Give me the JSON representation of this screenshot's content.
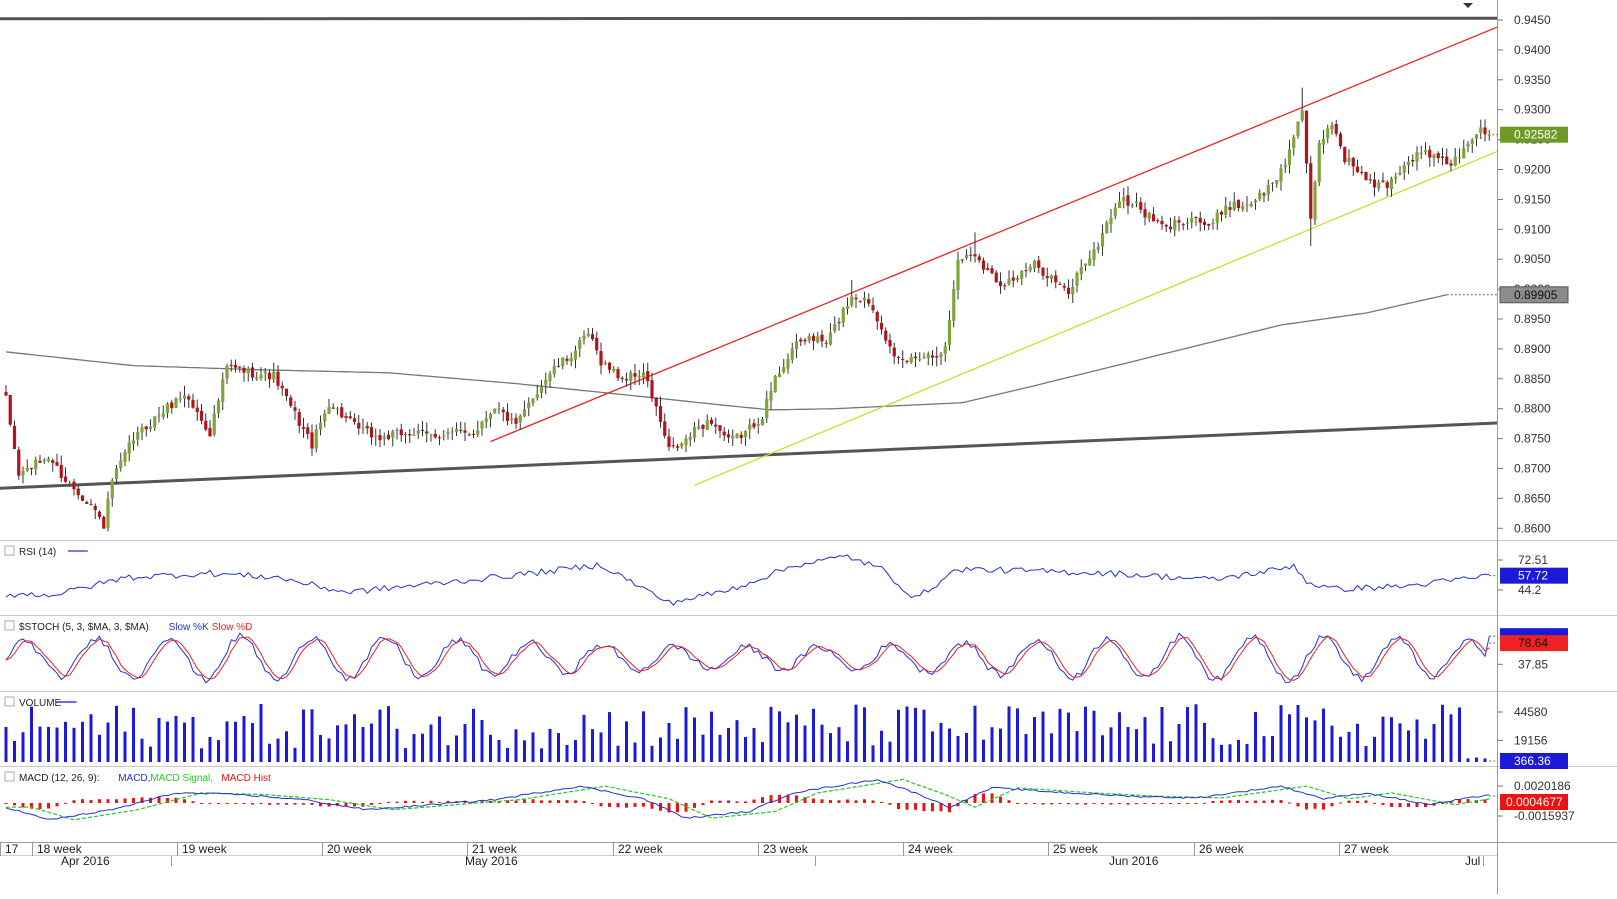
{
  "chart_data": {
    "type": "candlestick",
    "instrument_period": "4H",
    "colors": {
      "up_body": "#7ea53a",
      "down_body": "#b3131b",
      "wick": "#333333",
      "resistance_channel": "#ee2222",
      "support_channel": "#c8e02a",
      "long_trendline": "#555555",
      "sma": "#777777",
      "rsi": "#2233cc",
      "stoch_k": "#2233dd",
      "stoch_d": "#ee2222",
      "volume": "#1a1ad8",
      "macd": "#2233cc",
      "macd_signal": "#22cc22",
      "macd_hist": "#ee1111",
      "last_price_label": "#6e9a25",
      "sma_label": "#8c8c8c",
      "indicator_label": "#1a1ad8",
      "macd_label": "#ee1111"
    },
    "price_axis": {
      "ylim": [
        0.8575,
        0.9475
      ],
      "ticks": [
        "0.9450",
        "0.9400",
        "0.9350",
        "0.9300",
        "0.9250",
        "0.9200",
        "0.9150",
        "0.9100",
        "0.9050",
        "0.9000",
        "0.8950",
        "0.8900",
        "0.8850",
        "0.8800",
        "0.8750",
        "0.8700",
        "0.8650",
        "0.8600"
      ],
      "last_price": "0.92582",
      "sma_value": "0.89905"
    },
    "x_axis": {
      "week_labels": [
        "17",
        "18 week",
        "19 week",
        "20 week",
        "21 week",
        "22 week",
        "23 week",
        "24 week",
        "25 week",
        "26 week",
        "27 week"
      ],
      "month_labels": [
        "Apr 2016",
        "May 2016",
        "Jun 2016",
        "Jul"
      ]
    },
    "price_keypoints": [
      [
        0,
        0.8815
      ],
      [
        3,
        0.869
      ],
      [
        10,
        0.872
      ],
      [
        14,
        0.868
      ],
      [
        20,
        0.864
      ],
      [
        23,
        0.8605
      ],
      [
        25,
        0.868
      ],
      [
        30,
        0.875
      ],
      [
        36,
        0.879
      ],
      [
        42,
        0.8825
      ],
      [
        48,
        0.876
      ],
      [
        52,
        0.887
      ],
      [
        58,
        0.886
      ],
      [
        63,
        0.8855
      ],
      [
        68,
        0.879
      ],
      [
        72,
        0.874
      ],
      [
        76,
        0.881
      ],
      [
        82,
        0.877
      ],
      [
        88,
        0.875
      ],
      [
        94,
        0.876
      ],
      [
        100,
        0.8755
      ],
      [
        106,
        0.876
      ],
      [
        110,
        0.876
      ],
      [
        115,
        0.8805
      ],
      [
        120,
        0.877
      ],
      [
        124,
        0.882
      ],
      [
        128,
        0.886
      ],
      [
        133,
        0.889
      ],
      [
        137,
        0.8925
      ],
      [
        140,
        0.888
      ],
      [
        145,
        0.885
      ],
      [
        150,
        0.886
      ],
      [
        153,
        0.88
      ],
      [
        156,
        0.873
      ],
      [
        159,
        0.874
      ],
      [
        163,
        0.877
      ],
      [
        166,
        0.878
      ],
      [
        170,
        0.8745
      ],
      [
        174,
        0.876
      ],
      [
        178,
        0.879
      ],
      [
        181,
        0.885
      ],
      [
        185,
        0.89
      ],
      [
        189,
        0.892
      ],
      [
        193,
        0.891
      ],
      [
        196,
        0.895
      ],
      [
        199,
        0.899
      ],
      [
        203,
        0.898
      ],
      [
        206,
        0.894
      ],
      [
        209,
        0.888
      ],
      [
        212,
        0.888
      ],
      [
        215,
        0.889
      ],
      [
        218,
        0.889
      ],
      [
        221,
        0.89
      ],
      [
        224,
        0.905
      ],
      [
        228,
        0.906
      ],
      [
        231,
        0.903
      ],
      [
        234,
        0.901
      ],
      [
        238,
        0.902
      ],
      [
        242,
        0.904
      ],
      [
        246,
        0.902
      ],
      [
        250,
        0.899
      ],
      [
        253,
        0.904
      ],
      [
        256,
        0.906
      ],
      [
        259,
        0.911
      ],
      [
        262,
        0.915
      ],
      [
        266,
        0.914
      ],
      [
        269,
        0.912
      ],
      [
        273,
        0.91
      ],
      [
        276,
        0.9115
      ],
      [
        280,
        0.912
      ],
      [
        283,
        0.91
      ],
      [
        287,
        0.914
      ],
      [
        291,
        0.914
      ],
      [
        294,
        0.915
      ],
      [
        298,
        0.9175
      ],
      [
        301,
        0.921
      ],
      [
        303,
        0.926
      ],
      [
        305,
        0.93
      ],
      [
        307,
        0.911
      ],
      [
        309,
        0.924
      ],
      [
        312,
        0.928
      ],
      [
        315,
        0.922
      ],
      [
        318,
        0.92
      ],
      [
        321,
        0.9175
      ],
      [
        325,
        0.9175
      ],
      [
        328,
        0.92
      ],
      [
        331,
        0.922
      ],
      [
        334,
        0.923
      ],
      [
        337,
        0.9215
      ],
      [
        340,
        0.921
      ],
      [
        343,
        0.923
      ],
      [
        346,
        0.9265
      ],
      [
        349,
        0.9258
      ]
    ],
    "rsi": {
      "label": "RSI (14)",
      "ticks": [
        "72.51",
        "44.2"
      ],
      "value": "57.72",
      "keypoints": [
        [
          0,
          40
        ],
        [
          12,
          40
        ],
        [
          28,
          56
        ],
        [
          48,
          60
        ],
        [
          64,
          56
        ],
        [
          80,
          42
        ],
        [
          110,
          54
        ],
        [
          128,
          62
        ],
        [
          140,
          68
        ],
        [
          156,
          32
        ],
        [
          170,
          44
        ],
        [
          186,
          68
        ],
        [
          198,
          76
        ],
        [
          206,
          64
        ],
        [
          214,
          36
        ],
        [
          224,
          64
        ],
        [
          260,
          60
        ],
        [
          284,
          54
        ],
        [
          300,
          64
        ],
        [
          303,
          68
        ],
        [
          306,
          52
        ],
        [
          312,
          45
        ],
        [
          330,
          48
        ],
        [
          349,
          57.72
        ]
      ]
    },
    "stoch": {
      "label": "$STOCH (5, 3, $MA, 3, $MA)",
      "legend": [
        "Slow %K",
        "Slow %D"
      ],
      "ticks": [
        "37.85"
      ],
      "value": "78.64",
      "period_bars": 17
    },
    "volume": {
      "label": "VOLUME",
      "ticks": [
        "44580",
        "19156"
      ],
      "value": "366.36"
    },
    "macd": {
      "label": "MACD (12, 26, 9):",
      "legend": [
        "MACD",
        "MACD Signal",
        "MACD Hist"
      ],
      "ticks": [
        "0.0020186",
        "-0.0015937"
      ],
      "value": "0.0004677"
    }
  }
}
